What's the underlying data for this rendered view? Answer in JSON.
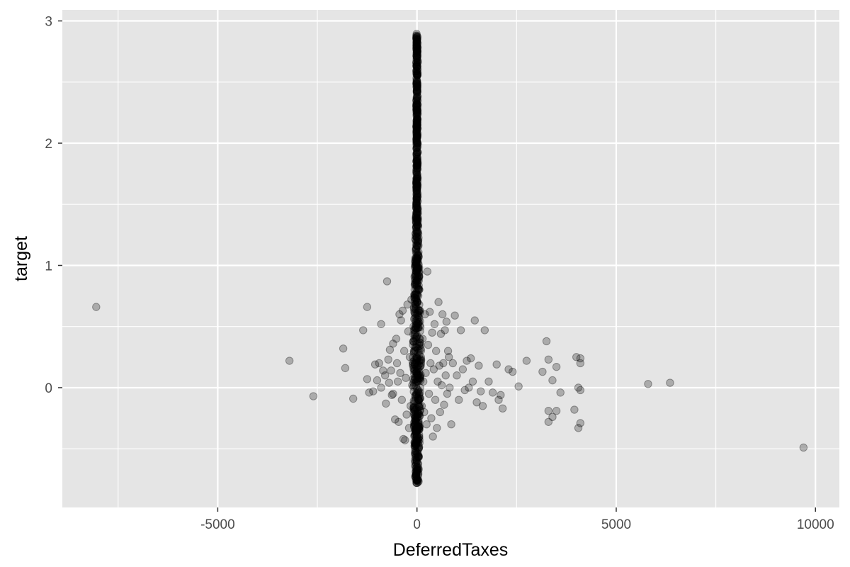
{
  "chart_data": {
    "type": "scatter",
    "title": "",
    "xlabel": "DeferredTaxes",
    "ylabel": "target",
    "xlim": [
      -8900,
      10600
    ],
    "ylim": [
      -0.98,
      3.09
    ],
    "x_ticks": [
      -5000,
      0,
      5000,
      10000
    ],
    "x_tick_labels": [
      "-5000",
      "0",
      "5000",
      "10000"
    ],
    "y_ticks": [
      0,
      1,
      2,
      3
    ],
    "y_tick_labels": [
      "0",
      "1",
      "2",
      "3"
    ],
    "x_minor_ticks": [
      -7500,
      -2500,
      2500,
      7500
    ],
    "y_minor_ticks": [
      -0.5,
      0.5,
      1.5,
      2.5
    ],
    "grid": true,
    "legend": "none",
    "colors": {
      "panel": "#e5e5e5",
      "grid": "#ffffff",
      "point": "#000000"
    },
    "point_alpha": 0.25,
    "points": [
      [
        -8050,
        0.66
      ],
      [
        -3200,
        0.22
      ],
      [
        -2600,
        -0.07
      ],
      [
        -1850,
        0.32
      ],
      [
        -1800,
        0.16
      ],
      [
        -1600,
        -0.09
      ],
      [
        -1350,
        0.47
      ],
      [
        -1250,
        0.66
      ],
      [
        -1250,
        0.07
      ],
      [
        -1200,
        -0.04
      ],
      [
        -1100,
        -0.03
      ],
      [
        -1050,
        0.19
      ],
      [
        -1000,
        0.06
      ],
      [
        -950,
        0.2
      ],
      [
        -900,
        0.52
      ],
      [
        -900,
        0.0
      ],
      [
        -850,
        0.14
      ],
      [
        -800,
        0.1
      ],
      [
        -780,
        -0.13
      ],
      [
        -750,
        0.87
      ],
      [
        -720,
        0.23
      ],
      [
        -700,
        0.04
      ],
      [
        -680,
        0.31
      ],
      [
        -650,
        0.14
      ],
      [
        -630,
        -0.06
      ],
      [
        -600,
        0.36
      ],
      [
        -600,
        -0.05
      ],
      [
        -550,
        -0.26
      ],
      [
        -520,
        0.4
      ],
      [
        -500,
        0.2
      ],
      [
        -480,
        0.05
      ],
      [
        -460,
        -0.28
      ],
      [
        -440,
        0.6
      ],
      [
        -420,
        0.12
      ],
      [
        -400,
        0.55
      ],
      [
        -380,
        -0.1
      ],
      [
        -360,
        0.63
      ],
      [
        -340,
        -0.42
      ],
      [
        -320,
        0.3
      ],
      [
        -300,
        -0.43
      ],
      [
        -280,
        0.08
      ],
      [
        -260,
        -0.22
      ],
      [
        -240,
        0.68
      ],
      [
        -220,
        0.46
      ],
      [
        -200,
        -0.33
      ],
      [
        -180,
        0.25
      ],
      [
        -160,
        -0.15
      ],
      [
        -140,
        0.72
      ],
      [
        -120,
        0.02
      ],
      [
        -100,
        0.35
      ],
      [
        -80,
        -0.2
      ],
      [
        -60,
        0.15
      ],
      [
        -40,
        0.5
      ],
      [
        -20,
        -0.05
      ],
      [
        0,
        0.2
      ],
      [
        20,
        0.1
      ],
      [
        40,
        -0.1
      ],
      [
        60,
        0.3
      ],
      [
        80,
        0.0
      ],
      [
        100,
        0.25
      ],
      [
        120,
        -0.15
      ],
      [
        140,
        0.4
      ],
      [
        160,
        0.05
      ],
      [
        180,
        -0.2
      ],
      [
        200,
        0.6
      ],
      [
        220,
        0.12
      ],
      [
        240,
        -0.3
      ],
      [
        260,
        0.95
      ],
      [
        280,
        0.35
      ],
      [
        300,
        -0.05
      ],
      [
        320,
        0.62
      ],
      [
        340,
        0.2
      ],
      [
        360,
        -0.25
      ],
      [
        380,
        0.45
      ],
      [
        400,
        -0.4
      ],
      [
        420,
        0.15
      ],
      [
        440,
        0.52
      ],
      [
        460,
        -0.1
      ],
      [
        480,
        0.3
      ],
      [
        500,
        -0.33
      ],
      [
        520,
        0.05
      ],
      [
        540,
        0.7
      ],
      [
        560,
        0.18
      ],
      [
        580,
        -0.2
      ],
      [
        600,
        0.44
      ],
      [
        620,
        0.02
      ],
      [
        640,
        0.6
      ],
      [
        660,
        0.2
      ],
      [
        680,
        -0.14
      ],
      [
        700,
        0.47
      ],
      [
        720,
        0.1
      ],
      [
        740,
        0.54
      ],
      [
        760,
        -0.05
      ],
      [
        780,
        0.3
      ],
      [
        800,
        0.25
      ],
      [
        820,
        0.0
      ],
      [
        860,
        -0.3
      ],
      [
        900,
        0.2
      ],
      [
        950,
        0.59
      ],
      [
        1000,
        0.1
      ],
      [
        1050,
        -0.1
      ],
      [
        1100,
        0.47
      ],
      [
        1150,
        0.15
      ],
      [
        1200,
        -0.02
      ],
      [
        1250,
        0.22
      ],
      [
        1300,
        0.0
      ],
      [
        1350,
        0.24
      ],
      [
        1400,
        0.05
      ],
      [
        1450,
        0.55
      ],
      [
        1500,
        -0.12
      ],
      [
        1550,
        0.18
      ],
      [
        1600,
        -0.03
      ],
      [
        1650,
        -0.15
      ],
      [
        1700,
        0.47
      ],
      [
        1800,
        0.05
      ],
      [
        1900,
        -0.04
      ],
      [
        2000,
        0.19
      ],
      [
        2050,
        -0.1
      ],
      [
        2100,
        -0.06
      ],
      [
        2150,
        -0.17
      ],
      [
        2300,
        0.15
      ],
      [
        2400,
        0.13
      ],
      [
        2550,
        0.01
      ],
      [
        2750,
        0.22
      ],
      [
        3150,
        0.13
      ],
      [
        3250,
        0.38
      ],
      [
        3300,
        0.23
      ],
      [
        3300,
        -0.19
      ],
      [
        3300,
        -0.28
      ],
      [
        3400,
        0.06
      ],
      [
        3400,
        -0.24
      ],
      [
        3500,
        -0.19
      ],
      [
        3500,
        0.17
      ],
      [
        3600,
        -0.04
      ],
      [
        3950,
        -0.18
      ],
      [
        4000,
        0.25
      ],
      [
        4050,
        0.0
      ],
      [
        4050,
        -0.33
      ],
      [
        4100,
        0.24
      ],
      [
        4100,
        0.2
      ],
      [
        4100,
        -0.02
      ],
      [
        4100,
        -0.29
      ],
      [
        5800,
        0.03
      ],
      [
        6350,
        0.04
      ],
      [
        9700,
        -0.49
      ]
    ],
    "center_line_x": 0,
    "center_line_y": [
      -0.78,
      2.9
    ],
    "center_spread": 110
  }
}
